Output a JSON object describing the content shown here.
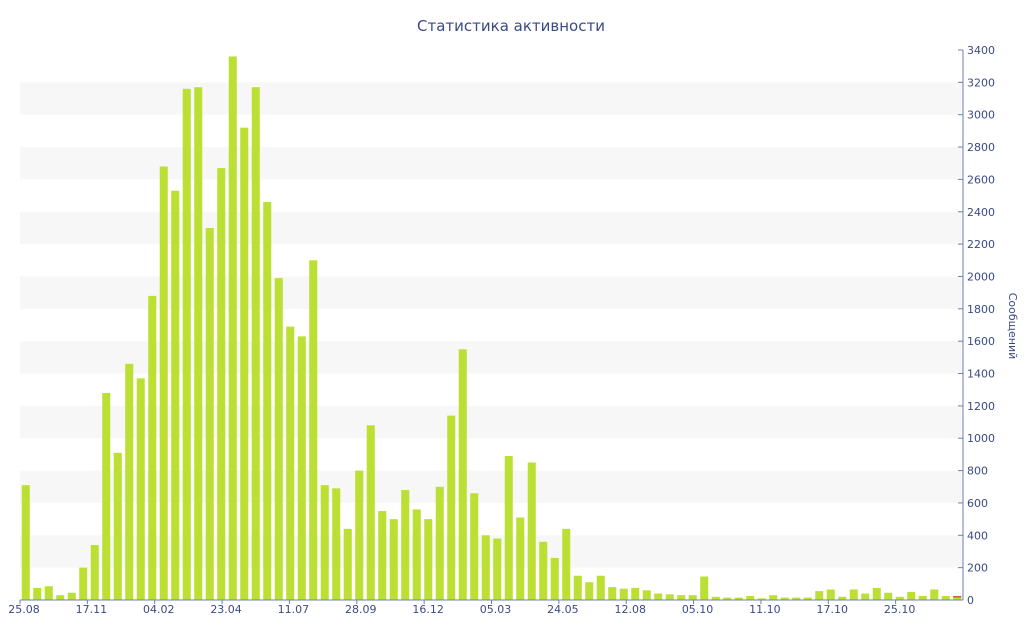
{
  "chart_data": {
    "type": "bar",
    "title": "Статистика активности",
    "ylabel": "Сообщений",
    "xlabel": "",
    "ylim": [
      0,
      3400
    ],
    "y_ticks": [
      0,
      200,
      400,
      600,
      800,
      1000,
      1200,
      1400,
      1600,
      1800,
      2000,
      2200,
      2400,
      2600,
      2800,
      3000,
      3200,
      3400
    ],
    "x_tick_labels": [
      "25.08",
      "17.11",
      "04.02",
      "23.04",
      "11.07",
      "28.09",
      "16.12",
      "05.03",
      "24.05",
      "12.08",
      "05.10",
      "11.10",
      "17.10",
      "25.10"
    ],
    "grid": "alternating horizontal bands",
    "y_axis_position": "right",
    "colors": {
      "bar": "#bbe033",
      "bar_accent": "#d65a4a",
      "band": "#f7f7f7",
      "text": "#3b4a86",
      "axis": "#6f7fb0"
    },
    "values": [
      710,
      75,
      85,
      30,
      45,
      200,
      340,
      1280,
      910,
      1460,
      1370,
      1880,
      2680,
      2530,
      3160,
      3170,
      2300,
      2670,
      3360,
      2920,
      3170,
      2460,
      1990,
      1690,
      1630,
      2100,
      710,
      690,
      440,
      800,
      1080,
      550,
      500,
      680,
      560,
      500,
      700,
      1140,
      1550,
      660,
      400,
      380,
      890,
      510,
      850,
      360,
      260,
      440,
      150,
      110,
      150,
      80,
      70,
      75,
      60,
      40,
      35,
      30,
      30,
      145,
      20,
      15,
      15,
      25,
      10,
      30,
      15,
      15,
      15,
      55,
      65,
      20,
      65,
      40,
      75,
      45,
      20,
      50,
      25,
      65,
      25,
      25
    ],
    "accent_values": [
      0,
      0,
      0,
      0,
      0,
      0,
      0,
      0,
      0,
      0,
      0,
      0,
      0,
      0,
      0,
      0,
      0,
      0,
      0,
      0,
      0,
      0,
      0,
      0,
      0,
      0,
      0,
      0,
      0,
      0,
      0,
      0,
      0,
      0,
      0,
      0,
      0,
      0,
      0,
      0,
      0,
      0,
      0,
      0,
      0,
      0,
      0,
      0,
      0,
      0,
      0,
      0,
      0,
      0,
      0,
      0,
      0,
      0,
      0,
      0,
      0,
      0,
      0,
      0,
      0,
      0,
      0,
      0,
      0,
      0,
      0,
      0,
      0,
      0,
      0,
      0,
      0,
      0,
      0,
      0,
      0,
      10
    ]
  }
}
